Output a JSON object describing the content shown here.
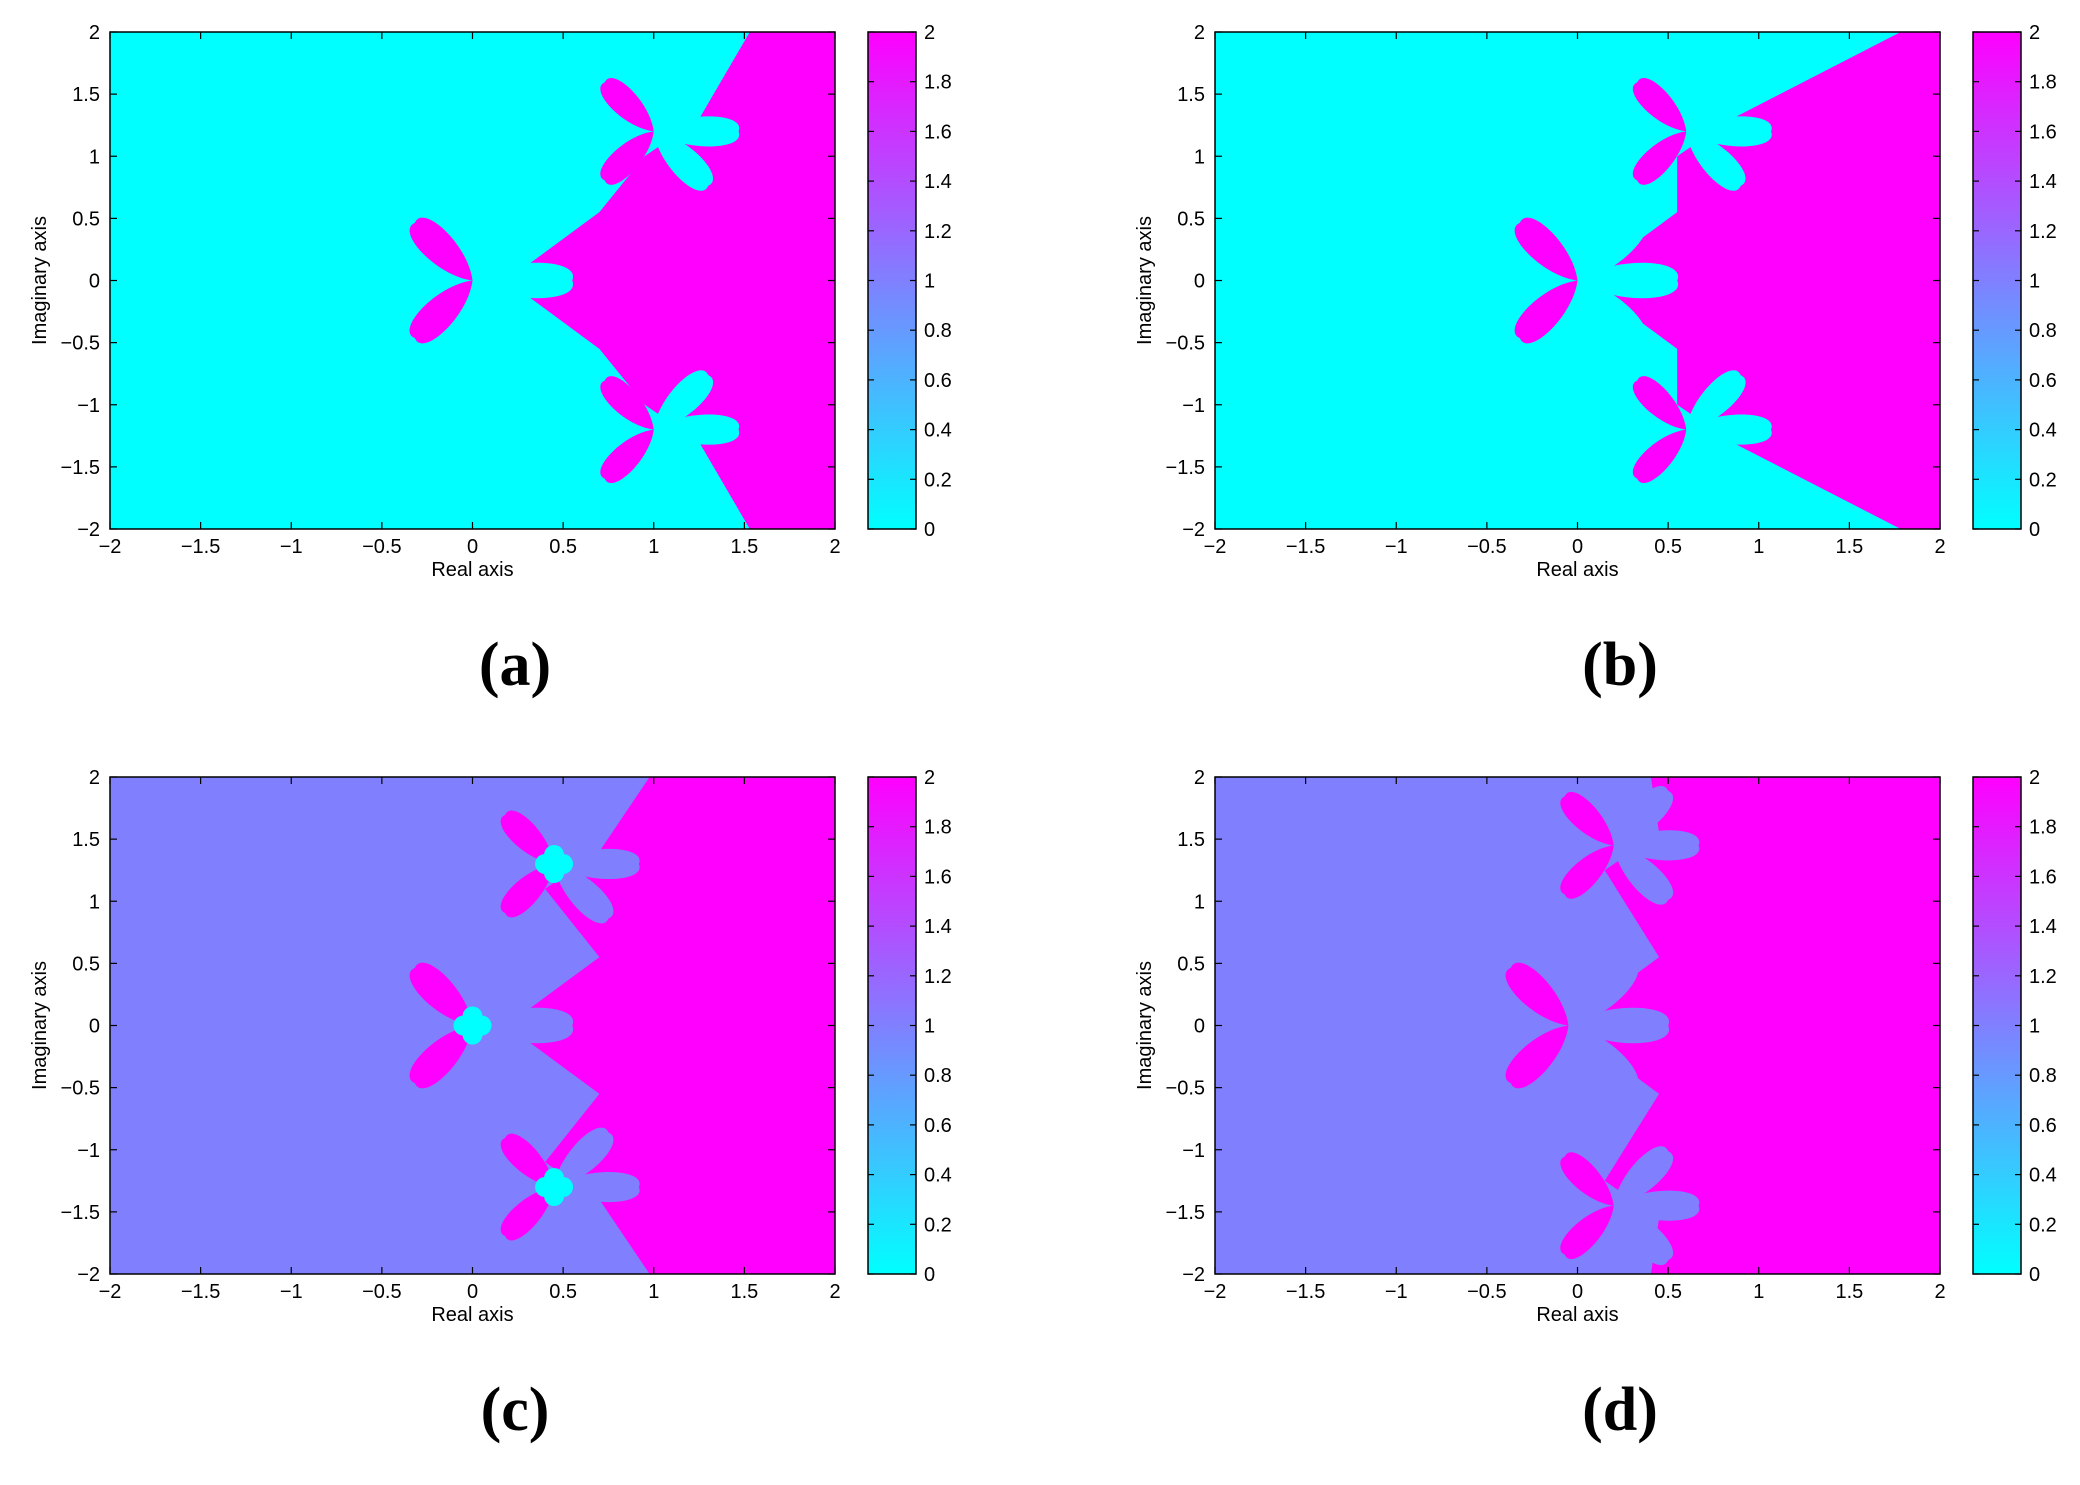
{
  "chart_data": [
    {
      "id": "a",
      "caption": "(a)",
      "type": "heatmap",
      "xlabel": "Real axis",
      "ylabel": "Imaginary axis",
      "xlim": [
        -2,
        2
      ],
      "ylim": [
        -2,
        2
      ],
      "x_ticks": [
        "−2",
        "−1.5",
        "−1",
        "−0.5",
        "0",
        "0.5",
        "1",
        "1.5",
        "2"
      ],
      "y_ticks": [
        "2",
        "1.5",
        "1",
        "0.5",
        "0",
        "−0.5",
        "−1",
        "−1.5",
        "−2"
      ],
      "colorbar_range": [
        0,
        2
      ],
      "colorbar_ticks": [
        "2",
        "1.8",
        "1.6",
        "1.4",
        "1.2",
        "1",
        "0.8",
        "0.6",
        "0.4",
        "0.2",
        "0"
      ],
      "background_value": 0,
      "region_value": 2,
      "flower_centers": [
        [
          0,
          0
        ],
        [
          1,
          1.2
        ],
        [
          1,
          -1.2
        ]
      ],
      "grid": false
    },
    {
      "id": "b",
      "caption": "(b)",
      "type": "heatmap",
      "xlabel": "Real axis",
      "ylabel": "Imaginary axis",
      "xlim": [
        -2,
        2
      ],
      "ylim": [
        -2,
        2
      ],
      "x_ticks": [
        "−2",
        "−1.5",
        "−1",
        "−0.5",
        "0",
        "0.5",
        "1",
        "1.5",
        "2"
      ],
      "y_ticks": [
        "2",
        "1.5",
        "1",
        "0.5",
        "0",
        "−0.5",
        "−1",
        "−1.5",
        "−2"
      ],
      "colorbar_range": [
        0,
        2
      ],
      "colorbar_ticks": [
        "2",
        "1.8",
        "1.6",
        "1.4",
        "1.2",
        "1",
        "0.8",
        "0.6",
        "0.4",
        "0.2",
        "0"
      ],
      "background_value": 0,
      "region_value": 2,
      "flower_centers": [
        [
          0,
          0
        ],
        [
          0.6,
          1.2
        ],
        [
          0.6,
          -1.2
        ]
      ],
      "grid": false
    },
    {
      "id": "c",
      "caption": "(c)",
      "type": "heatmap",
      "xlabel": "Real axis",
      "ylabel": "Imaginary axis",
      "xlim": [
        -2,
        2
      ],
      "ylim": [
        -2,
        2
      ],
      "x_ticks": [
        "−2",
        "−1.5",
        "−1",
        "−0.5",
        "0",
        "0.5",
        "1",
        "1.5",
        "2"
      ],
      "y_ticks": [
        "2",
        "1.5",
        "1",
        "0.5",
        "0",
        "−0.5",
        "−1",
        "−1.5",
        "−2"
      ],
      "colorbar_range": [
        0,
        2
      ],
      "colorbar_ticks": [
        "2",
        "1.8",
        "1.6",
        "1.4",
        "1.2",
        "1",
        "0.8",
        "0.6",
        "0.4",
        "0.2",
        "0"
      ],
      "background_value": 1,
      "region_value": 2,
      "flower_centers": [
        [
          0,
          0
        ],
        [
          0.45,
          1.3
        ],
        [
          0.45,
          -1.3
        ]
      ],
      "grid": false
    },
    {
      "id": "d",
      "caption": "(d)",
      "type": "heatmap",
      "xlabel": "Real axis",
      "ylabel": "Imaginary axis",
      "xlim": [
        -2,
        2
      ],
      "ylim": [
        -2,
        2
      ],
      "x_ticks": [
        "−2",
        "−1.5",
        "−1",
        "−0.5",
        "0",
        "0.5",
        "1",
        "1.5",
        "2"
      ],
      "y_ticks": [
        "2",
        "1.5",
        "1",
        "0.5",
        "0",
        "−0.5",
        "−1",
        "−1.5",
        "−2"
      ],
      "colorbar_range": [
        0,
        2
      ],
      "colorbar_ticks": [
        "2",
        "1.8",
        "1.6",
        "1.4",
        "1.2",
        "1",
        "0.8",
        "0.6",
        "0.4",
        "0.2",
        "0"
      ],
      "background_value": 1,
      "region_value": 2,
      "flower_centers": [
        [
          -0.05,
          0
        ],
        [
          0.2,
          1.45
        ],
        [
          0.2,
          -1.45
        ]
      ],
      "grid": false
    }
  ]
}
